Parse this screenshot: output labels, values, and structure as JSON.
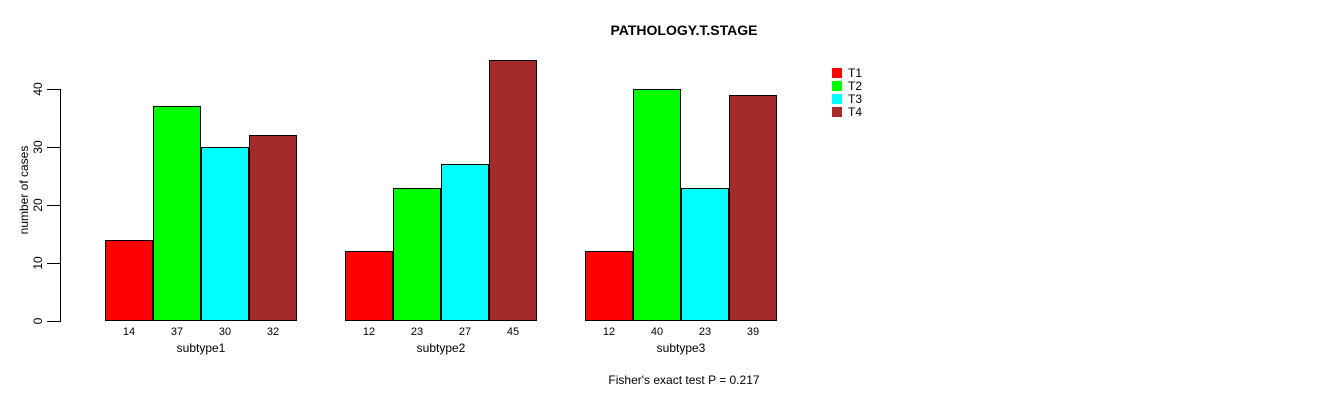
{
  "chart_data": {
    "type": "bar",
    "title": "PATHOLOGY.T.STAGE",
    "ylabel": "number of cases",
    "xlabel": "",
    "categories": [
      "subtype1",
      "subtype2",
      "subtype3"
    ],
    "series": [
      {
        "name": "T1",
        "color": "#ff0000",
        "values": [
          14,
          12,
          12
        ]
      },
      {
        "name": "T2",
        "color": "#00ff00",
        "values": [
          37,
          23,
          40
        ]
      },
      {
        "name": "T3",
        "color": "#00ffff",
        "values": [
          30,
          27,
          23
        ]
      },
      {
        "name": "T4",
        "color": "#a52a2a",
        "values": [
          32,
          45,
          39
        ]
      }
    ],
    "yticks": [
      0,
      10,
      20,
      30,
      40
    ],
    "ylim": [
      0,
      45
    ],
    "bar_value_labels": true,
    "legend_position": "right",
    "grid": false,
    "annotation": "Fisher's exact test P = 0.217",
    "background_color": "#ffffff",
    "axis_color": "#000000"
  }
}
